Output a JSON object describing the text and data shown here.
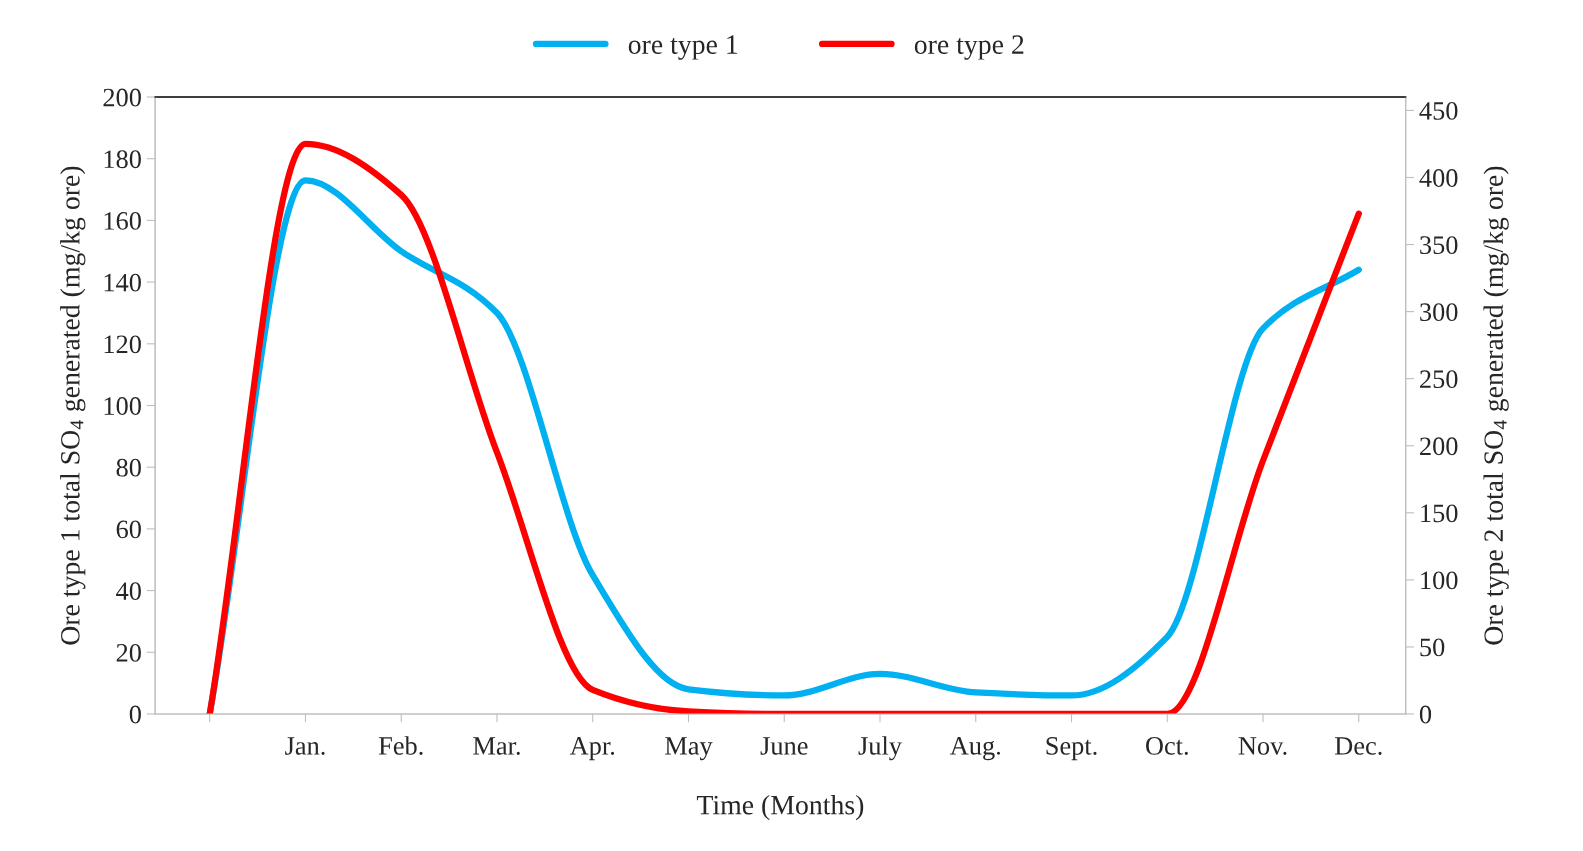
{
  "chart_data": {
    "type": "line",
    "xlabel": "Time (Months)",
    "ylabel": "Ore type 1 total SO$_{4}$ generated (mg/kg ore)",
    "y2label": "Ore type 2 total SO$_{4}$ generated (mg/kg ore)",
    "categories": [
      null,
      "Jan.",
      "Feb.",
      "Mar.",
      "Apr.",
      "May",
      "June",
      "July",
      "Aug.",
      "Sept.",
      "Oct.",
      "Nov.",
      "Dec."
    ],
    "series": [
      {
        "name": "ore type 1",
        "color": "#00b0f0",
        "values": [
          0,
          173,
          150,
          130,
          45,
          8,
          6,
          13,
          7,
          6,
          25,
          125,
          144
        ]
      },
      {
        "name": "ore type 2",
        "color": "#ff0000",
        "axis": "y2",
        "values": [
          0,
          425,
          387,
          195,
          18,
          2,
          0,
          0,
          0,
          0,
          0,
          189,
          373
        ]
      }
    ],
    "ylim": [
      0,
      200
    ],
    "yticks": [
      0,
      20,
      40,
      60,
      80,
      100,
      120,
      140,
      160,
      180,
      200
    ],
    "y2lim": [
      0,
      460
    ],
    "y2ticks": [
      0,
      50,
      100,
      150,
      200,
      250,
      300,
      350,
      400,
      450
    ],
    "grid": false,
    "legend": "top"
  }
}
